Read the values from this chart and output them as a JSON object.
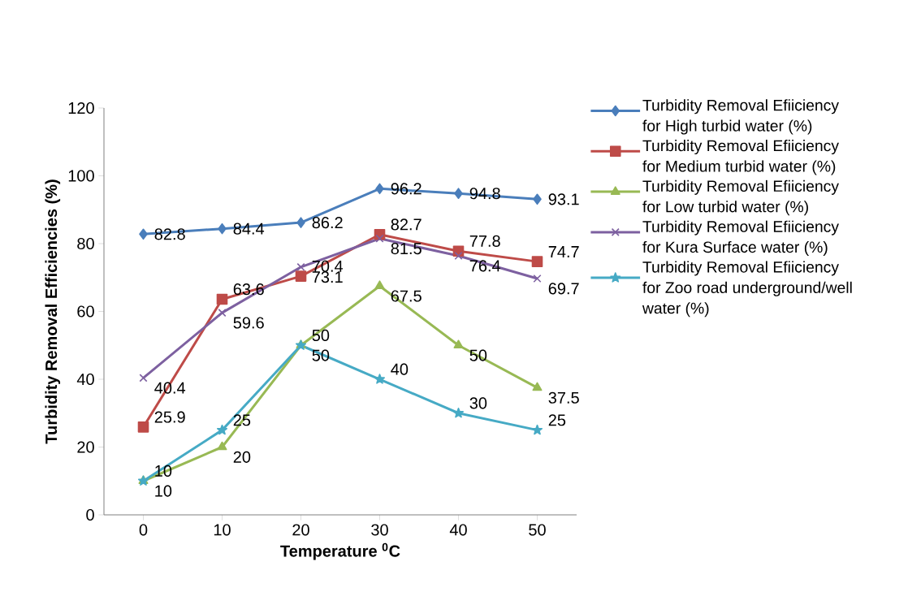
{
  "chart_data": {
    "type": "line",
    "xlabel": "Temperature $^{0}$C",
    "ylabel": "Turbidity Removal Efficiencies (%)",
    "x": [
      0,
      10,
      20,
      30,
      40,
      50
    ],
    "xlim": [
      -5,
      55
    ],
    "xticks": [
      0,
      10,
      20,
      30,
      40,
      50
    ],
    "ylim": [
      0,
      120
    ],
    "yticks": [
      0,
      20,
      40,
      60,
      80,
      100,
      120
    ],
    "grid": false,
    "legend": "right",
    "data_labels": true,
    "series": [
      {
        "name": "Turbidity Removal Efiiciency for High turbid water (%)",
        "color": "#4a7ebb",
        "marker": "diamond",
        "values": [
          82.8,
          84.4,
          86.2,
          96.2,
          94.8,
          93.1
        ]
      },
      {
        "name": "Turbidity Removal Efiiciency for Medium turbid water (%)",
        "color": "#be4b48",
        "marker": "square",
        "values": [
          25.9,
          63.6,
          70.4,
          82.7,
          77.8,
          74.7
        ]
      },
      {
        "name": "Turbidity Removal Efiiciency for Low turbid water (%)",
        "color": "#98b954",
        "marker": "triangle",
        "values": [
          10,
          20,
          50,
          67.5,
          50,
          37.5
        ]
      },
      {
        "name": "Turbidity Removal Efiiciency for Kura Surface water (%)",
        "color": "#7d60a0",
        "marker": "cross",
        "values": [
          40.4,
          59.6,
          73.1,
          81.5,
          76.4,
          69.7
        ]
      },
      {
        "name": "Turbidity Removal Efiiciency for Zoo road underground/well water (%)",
        "color": "#46aac5",
        "marker": "star",
        "values": [
          10,
          25,
          50,
          40,
          30,
          25
        ]
      }
    ]
  }
}
